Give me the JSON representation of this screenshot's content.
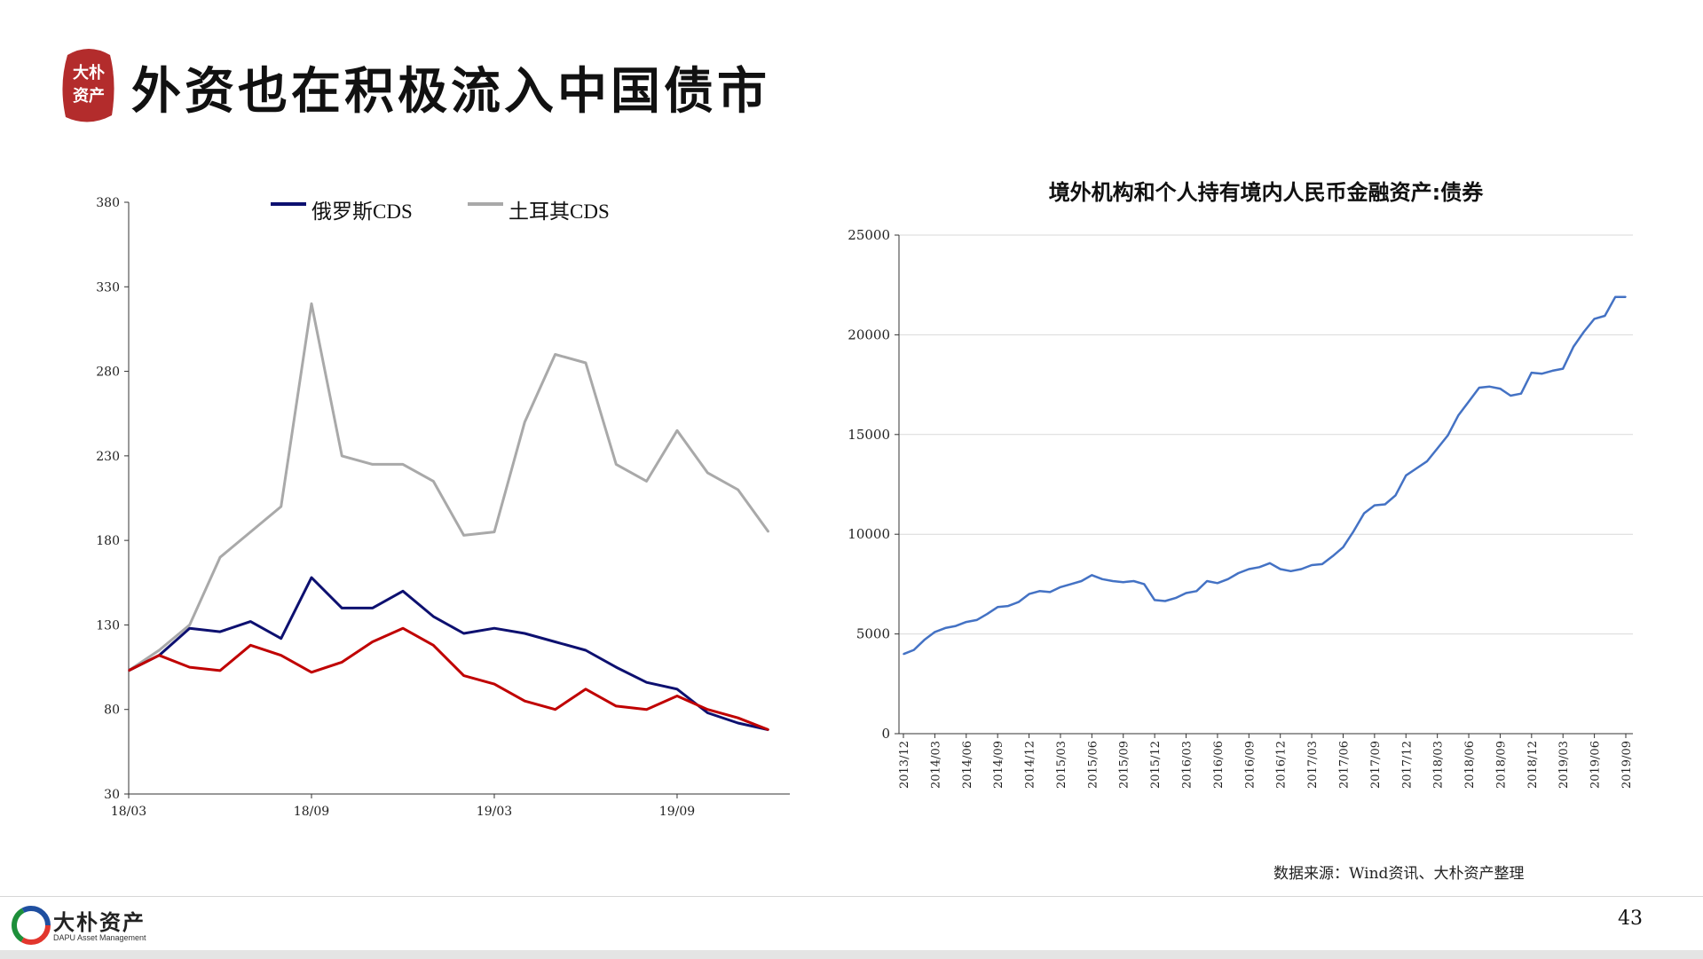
{
  "header": {
    "title": "外资也在积极流入中国债市",
    "logo_text": "大朴资产"
  },
  "footer": {
    "source": "数据来源：Wind资讯、大朴资产整理",
    "brand": "大朴资产",
    "brand_en": "DAPU Asset Management",
    "page_number": "43"
  },
  "colors": {
    "russia": "#0d1070",
    "turkey": "#a9a9a9",
    "third_series": "#c00000",
    "bonds": "#4472c4",
    "seal": "#b32c2c"
  },
  "chart_data": [
    {
      "type": "line",
      "title": "",
      "ylim": [
        30,
        380
      ],
      "yticks": [
        30,
        80,
        130,
        180,
        230,
        280,
        330,
        380
      ],
      "xticks": [
        "18/03",
        "18/09",
        "19/03",
        "19/09"
      ],
      "legend_position": "top",
      "series": [
        {
          "name": "俄罗斯CDS",
          "x": [
            "18/03",
            "18/04",
            "18/05",
            "18/06",
            "18/07",
            "18/08",
            "18/09",
            "18/10",
            "18/11",
            "18/12",
            "19/01",
            "19/02",
            "19/03",
            "19/04",
            "19/05",
            "19/06",
            "19/07",
            "19/08",
            "19/09",
            "19/10",
            "19/11",
            "19/12"
          ],
          "y": [
            103,
            112,
            128,
            126,
            132,
            122,
            158,
            140,
            140,
            150,
            135,
            125,
            128,
            125,
            120,
            115,
            105,
            96,
            92,
            78,
            72,
            68
          ]
        },
        {
          "name": "土耳其CDS",
          "x": [
            "18/03",
            "18/04",
            "18/05",
            "18/06",
            "18/07",
            "18/08",
            "18/09",
            "18/10",
            "18/11",
            "18/12",
            "19/01",
            "19/02",
            "19/03",
            "19/04",
            "19/05",
            "19/06",
            "19/07",
            "19/08",
            "19/09",
            "19/10",
            "19/11",
            "19/12"
          ],
          "y": [
            103,
            115,
            130,
            170,
            185,
            200,
            320,
            230,
            225,
            225,
            215,
            183,
            185,
            250,
            290,
            285,
            225,
            215,
            245,
            220,
            210,
            185
          ]
        },
        {
          "x": [
            "18/03",
            "18/04",
            "18/05",
            "18/06",
            "18/07",
            "18/08",
            "18/09",
            "18/10",
            "18/11",
            "18/12",
            "19/01",
            "19/02",
            "19/03",
            "19/04",
            "19/05",
            "19/06",
            "19/07",
            "19/08",
            "19/09",
            "19/10",
            "19/11",
            "19/12"
          ],
          "y": [
            103,
            112,
            105,
            103,
            118,
            112,
            102,
            108,
            120,
            128,
            118,
            100,
            95,
            85,
            80,
            92,
            82,
            80,
            88,
            80,
            75,
            68
          ]
        }
      ]
    },
    {
      "type": "line",
      "title": "境外机构和个人持有境内人民币金融资产:债券",
      "ylim": [
        0,
        25000
      ],
      "yticks": [
        0,
        5000,
        10000,
        15000,
        20000,
        25000
      ],
      "series": [
        {
          "x": [
            "2013/12",
            "2014/01",
            "2014/02",
            "2014/03",
            "2014/04",
            "2014/05",
            "2014/06",
            "2014/07",
            "2014/08",
            "2014/09",
            "2014/10",
            "2014/11",
            "2014/12",
            "2015/01",
            "2015/02",
            "2015/03",
            "2015/04",
            "2015/05",
            "2015/06",
            "2015/07",
            "2015/08",
            "2015/09",
            "2015/10",
            "2015/11",
            "2015/12",
            "2016/01",
            "2016/02",
            "2016/03",
            "2016/04",
            "2016/05",
            "2016/06",
            "2016/07",
            "2016/08",
            "2016/09",
            "2016/10",
            "2016/11",
            "2016/12",
            "2017/01",
            "2017/02",
            "2017/03",
            "2017/04",
            "2017/05",
            "2017/06",
            "2017/07",
            "2017/08",
            "2017/09",
            "2017/10",
            "2017/11",
            "2017/12",
            "2018/01",
            "2018/02",
            "2018/03",
            "2018/04",
            "2018/05",
            "2018/06",
            "2018/07",
            "2018/08",
            "2018/09",
            "2018/10",
            "2018/11",
            "2018/12",
            "2019/01",
            "2019/02",
            "2019/03",
            "2019/04",
            "2019/05",
            "2019/06",
            "2019/07",
            "2019/08",
            "2019/09"
          ],
          "y": [
            3990,
            4200,
            4700,
            5100,
            5300,
            5400,
            5600,
            5700,
            6000,
            6350,
            6400,
            6600,
            7000,
            7150,
            7100,
            7350,
            7500,
            7650,
            7950,
            7750,
            7650,
            7600,
            7650,
            7500,
            6700,
            6650,
            6800,
            7050,
            7150,
            7650,
            7550,
            7750,
            8050,
            8250,
            8350,
            8550,
            8250,
            8150,
            8250,
            8450,
            8500,
            8900,
            9350,
            10150,
            11050,
            11450,
            11500,
            11950,
            12950,
            13300,
            13650,
            14300,
            14950,
            15950,
            16650,
            17350,
            17400,
            17300,
            16950,
            17050,
            18100,
            18050,
            18200,
            18300,
            19400,
            20150,
            20800,
            20950,
            21900,
            21900
          ]
        }
      ],
      "xticks": [
        "2013/12",
        "2014/03",
        "2014/06",
        "2014/09",
        "2014/12",
        "2015/03",
        "2015/06",
        "2015/09",
        "2015/12",
        "2016/03",
        "2016/06",
        "2016/09",
        "2016/12",
        "2017/03",
        "2017/06",
        "2017/09",
        "2017/12",
        "2018/03",
        "2018/06",
        "2018/09",
        "2018/12",
        "2019/03",
        "2019/06",
        "2019/09"
      ]
    }
  ]
}
